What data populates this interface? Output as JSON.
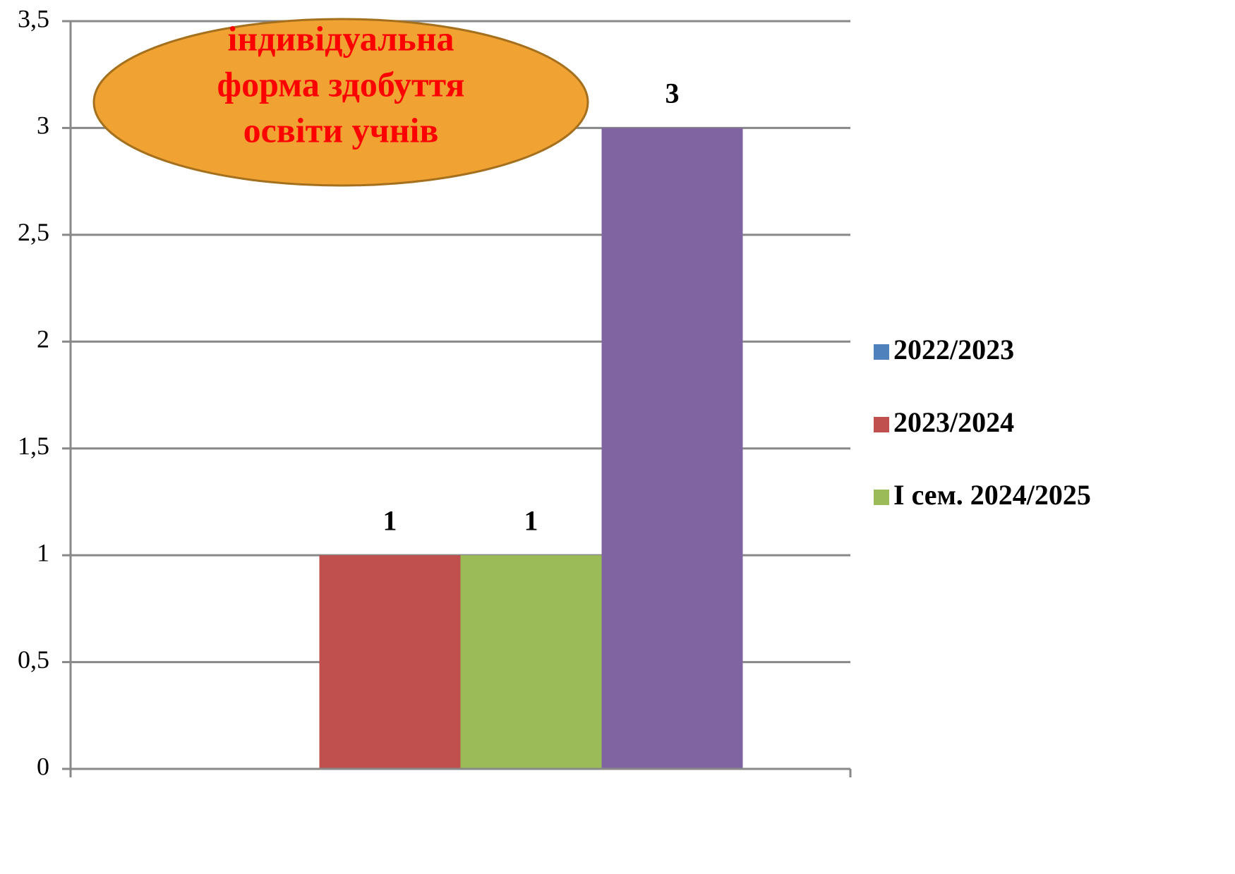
{
  "chart_data": {
    "type": "bar",
    "annotation": [
      "індивідуальна",
      "форма здобуття",
      "освіти учнів"
    ],
    "categories": [
      null
    ],
    "series": [
      {
        "name": "2022/2023",
        "color": "#4f81bd",
        "values": [
          null
        ]
      },
      {
        "name": "2023/2024",
        "color": "#c0504d",
        "values": [
          1
        ]
      },
      {
        "name": "I сем. 2024/2025",
        "color": "#9bbb59",
        "values": [
          1
        ]
      },
      {
        "color": "#8064a2",
        "values": [
          3
        ]
      }
    ],
    "ylim": [
      0,
      3.5
    ],
    "yticks": [
      0,
      {
        "value": 0.5,
        "label": "0,5"
      },
      1,
      {
        "value": 1.5,
        "label": "1,5"
      },
      2,
      {
        "value": 2.5,
        "label": "2,5"
      },
      3,
      {
        "value": 3.5,
        "label": "3,5"
      }
    ],
    "grid": true,
    "legend": "right"
  }
}
